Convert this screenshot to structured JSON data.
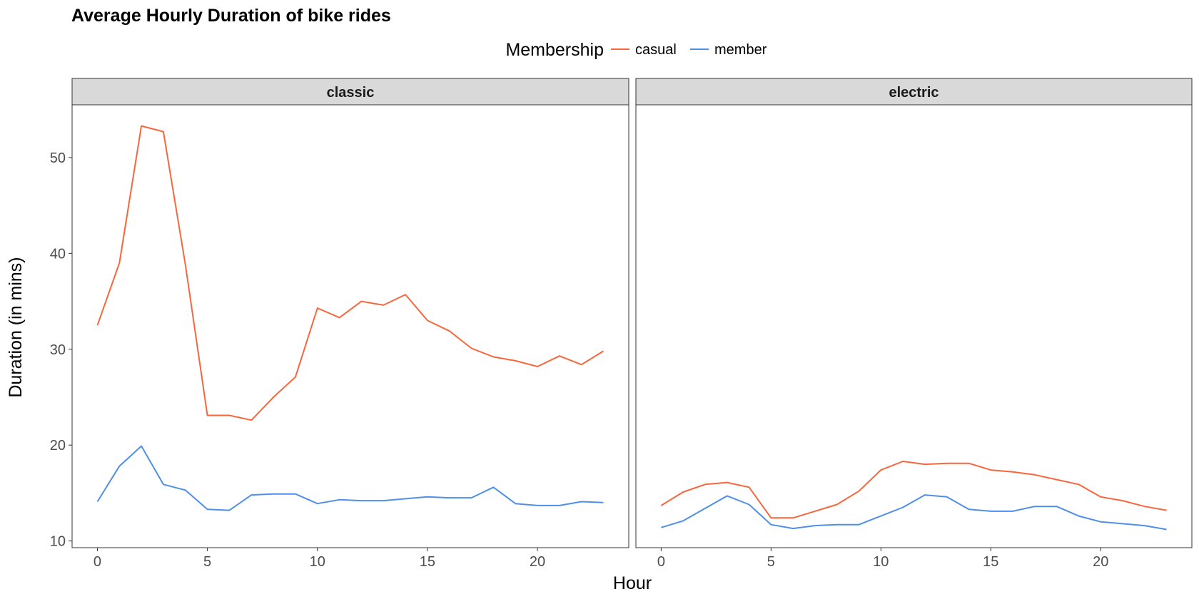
{
  "chart_data": {
    "type": "line",
    "title": "Average Hourly Duration of bike rides",
    "xlabel": "Hour",
    "ylabel": "Duration (in mins)",
    "legend": {
      "title": "Membership",
      "position": "top"
    },
    "x": [
      0,
      1,
      2,
      3,
      4,
      5,
      6,
      7,
      8,
      9,
      10,
      11,
      12,
      13,
      14,
      15,
      16,
      17,
      18,
      19,
      20,
      21,
      22,
      23
    ],
    "xlim": [
      -1.15,
      24.15
    ],
    "ylim": [
      9.3,
      55.5
    ],
    "xticks": [
      0,
      5,
      10,
      15,
      20
    ],
    "yticks": [
      10,
      20,
      30,
      40,
      50
    ],
    "grid": false,
    "colors": {
      "casual": "#F8663C",
      "member": "#4F8FE8",
      "strip": "#D9D9D9"
    },
    "panels": [
      {
        "label": "classic",
        "series": [
          {
            "name": "casual",
            "values": [
              32.5,
              39.0,
              53.3,
              52.7,
              38.8,
              23.1,
              23.1,
              22.6,
              25.0,
              27.1,
              34.3,
              33.3,
              35.0,
              34.6,
              35.7,
              33.0,
              31.9,
              30.1,
              29.2,
              28.8,
              28.2,
              29.3,
              28.4,
              29.8
            ]
          },
          {
            "name": "member",
            "values": [
              14.1,
              17.8,
              19.9,
              15.9,
              15.3,
              13.3,
              13.2,
              14.8,
              14.9,
              14.9,
              13.9,
              14.3,
              14.2,
              14.2,
              14.4,
              14.6,
              14.5,
              14.5,
              15.6,
              13.9,
              13.7,
              13.7,
              14.1,
              14.0
            ]
          }
        ]
      },
      {
        "label": "electric",
        "series": [
          {
            "name": "casual",
            "values": [
              13.7,
              15.1,
              15.9,
              16.1,
              15.6,
              12.4,
              12.4,
              13.1,
              13.8,
              15.2,
              17.4,
              18.3,
              18.0,
              18.1,
              18.1,
              17.4,
              17.2,
              16.9,
              16.4,
              15.9,
              14.6,
              14.2,
              13.6,
              13.2
            ]
          },
          {
            "name": "member",
            "values": [
              11.4,
              12.1,
              13.4,
              14.7,
              13.8,
              11.7,
              11.3,
              11.6,
              11.7,
              11.7,
              12.6,
              13.5,
              14.8,
              14.6,
              13.3,
              13.1,
              13.1,
              13.6,
              13.6,
              12.6,
              12.0,
              11.8,
              11.6,
              11.2
            ]
          }
        ]
      }
    ]
  }
}
